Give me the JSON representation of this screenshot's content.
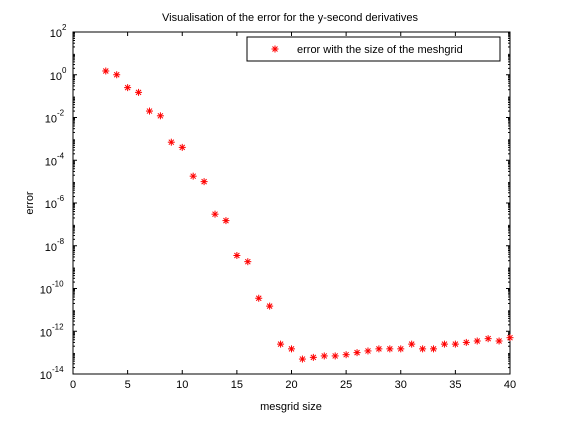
{
  "chart_data": {
    "type": "scatter",
    "title": "Visualisation of the error for the y-second derivatives",
    "xlabel": "mesgrid size",
    "ylabel": "error",
    "xlim": [
      0,
      40
    ],
    "ylim": [
      1e-14,
      100
    ],
    "yscale": "log",
    "grid": false,
    "legend_position": "top-right",
    "x_ticks": [
      "0",
      "5",
      "10",
      "15",
      "20",
      "25",
      "30",
      "35",
      "40"
    ],
    "y_tick_exponents": [
      "2",
      "0",
      "-2",
      "-4",
      "-6",
      "-8",
      "-10",
      "-12",
      "-14"
    ],
    "y_tick_base": "10",
    "marker_color": "#ff0000",
    "series": [
      {
        "name": "error with the size of the meshgrid",
        "marker": "*",
        "x": [
          3,
          4,
          5,
          6,
          7,
          8,
          9,
          10,
          11,
          12,
          13,
          14,
          15,
          16,
          17,
          18,
          19,
          20,
          21,
          22,
          23,
          24,
          25,
          26,
          27,
          28,
          29,
          30,
          31,
          32,
          33,
          34,
          35,
          36,
          37,
          38,
          39,
          40
        ],
        "y": [
          1.5,
          1.0,
          0.25,
          0.15,
          0.02,
          0.012,
          0.0007,
          0.0004,
          1.8e-05,
          1e-05,
          3e-07,
          1.5e-07,
          3.5e-09,
          1.8e-09,
          3.5e-11,
          1.5e-11,
          2.5e-13,
          1.5e-13,
          5e-14,
          6e-14,
          7e-14,
          7e-14,
          8e-14,
          1e-13,
          1.2e-13,
          1.5e-13,
          1.5e-13,
          1.5e-13,
          2.5e-13,
          1.5e-13,
          1.5e-13,
          2.5e-13,
          2.5e-13,
          3e-13,
          3.5e-13,
          4.5e-13,
          3.5e-13,
          5e-13
        ]
      }
    ]
  }
}
